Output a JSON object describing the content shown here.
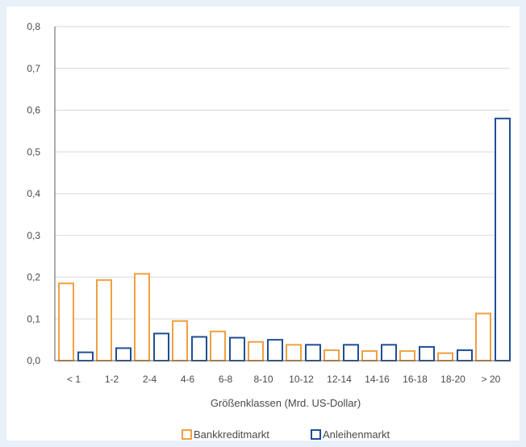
{
  "chart_data": {
    "type": "bar",
    "title": "",
    "xlabel": "Größenklassen (Mrd. US-Dollar)",
    "ylabel": "",
    "ylim": [
      0,
      0.8
    ],
    "yticks": [
      "0,0",
      "0,1",
      "0,2",
      "0,3",
      "0,4",
      "0,5",
      "0,6",
      "0,7",
      "0,8"
    ],
    "grid": true,
    "legend_position": "bottom",
    "categories": [
      "< 1",
      "1-2",
      "2-4",
      "4-6",
      "6-8",
      "8-10",
      "10-12",
      "12-14",
      "14-16",
      "16-18",
      "18-20",
      "> 20"
    ],
    "series": [
      {
        "name": "Bankkreditmarkt",
        "color": "#f0a040",
        "values": [
          0.185,
          0.193,
          0.208,
          0.095,
          0.07,
          0.045,
          0.038,
          0.025,
          0.023,
          0.023,
          0.018,
          0.113
        ]
      },
      {
        "name": "Anleihenmarkt",
        "color": "#1f4e96",
        "values": [
          0.02,
          0.03,
          0.065,
          0.057,
          0.055,
          0.05,
          0.038,
          0.038,
          0.038,
          0.033,
          0.025,
          0.58
        ]
      }
    ]
  }
}
